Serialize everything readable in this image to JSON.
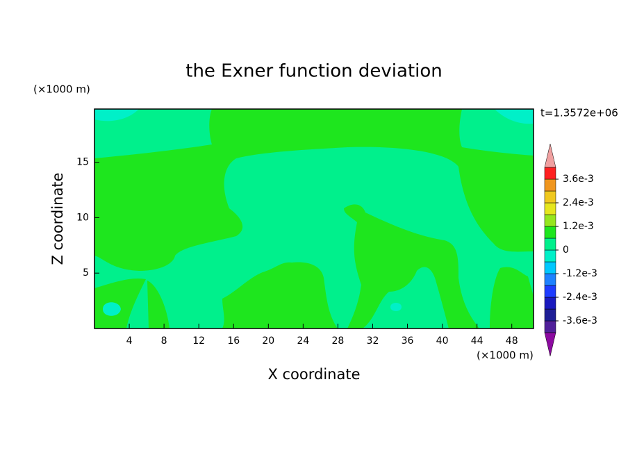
{
  "chart_data": {
    "type": "contour",
    "title": "the Exner function deviation",
    "x_label": "X coordinate",
    "y_label": "Z coordinate",
    "x_unit": "(×1000 m)",
    "y_unit": "(×1000 m)",
    "annotation": "t=1.3572e+06",
    "xlim": [
      0,
      50.5
    ],
    "ylim": [
      0,
      19.8
    ],
    "xticks": [
      4,
      8,
      12,
      16,
      20,
      24,
      28,
      32,
      36,
      40,
      44,
      48
    ],
    "yticks": [
      5,
      10,
      15
    ],
    "colorbar": {
      "levels": [
        -0.0042,
        -0.0036,
        -0.003,
        -0.0024,
        -0.0018,
        -0.0012,
        -0.0006,
        0,
        0.0006,
        0.0012,
        0.0018,
        0.0024,
        0.003,
        0.0036,
        0.0042
      ],
      "colors": [
        "#50209a",
        "#1e1e96",
        "#1a1abe",
        "#1e3cff",
        "#1e82ff",
        "#00c8ff",
        "#00f0c8",
        "#00f08c",
        "#1ee61e",
        "#96e61e",
        "#e6e61e",
        "#f0c81e",
        "#f0961e",
        "#ff2020"
      ],
      "over_color": "#f0a0a0",
      "under_color": "#8c0aa0",
      "ticks": [
        {
          "value": 0.0036,
          "label": "3.6e-3"
        },
        {
          "value": 0.0024,
          "label": "2.4e-3"
        },
        {
          "value": 0.0012,
          "label": "1.2e-3"
        },
        0,
        {
          "value": -0.0012,
          "label": "-1.2e-3"
        },
        {
          "value": -0.0024,
          "label": "-2.4e-3"
        },
        {
          "value": -0.0036,
          "label": "-3.6e-3"
        }
      ]
    }
  }
}
